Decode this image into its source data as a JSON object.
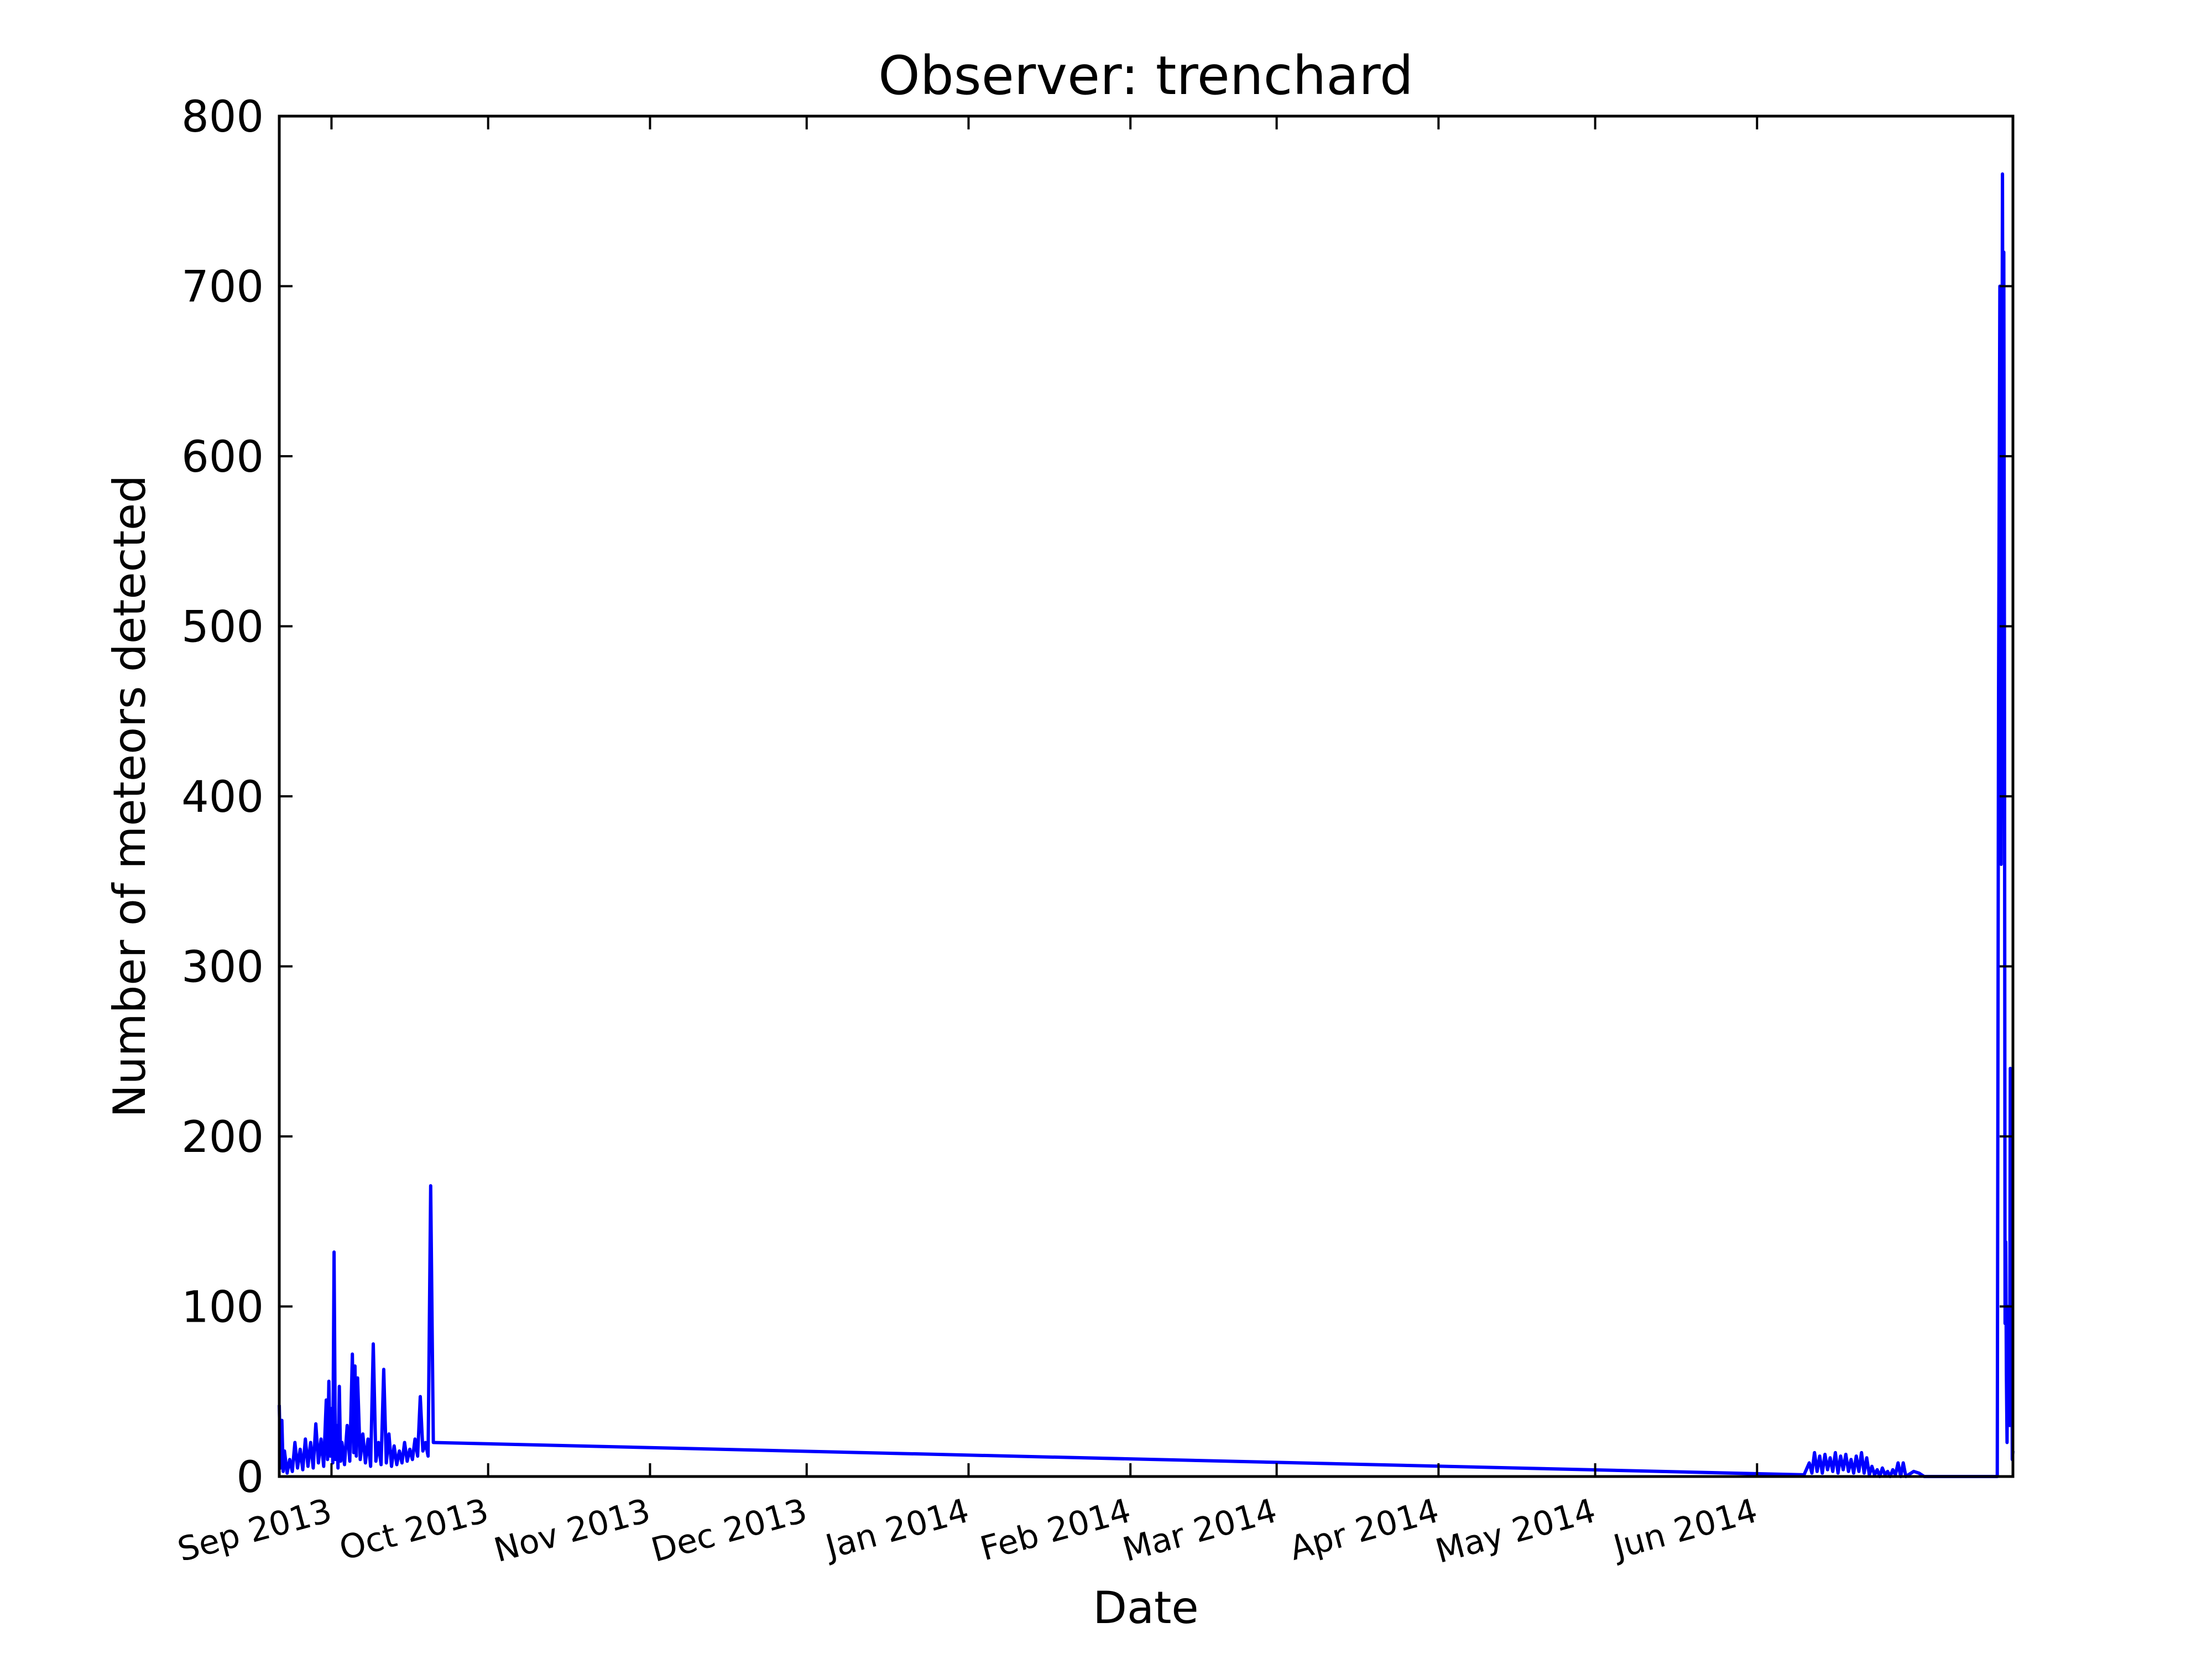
{
  "chart_data": {
    "type": "line",
    "title": "Observer: trenchard",
    "xlabel": "Date",
    "ylabel": "Number of meteors detected",
    "xlim": [
      "2013-08-22",
      "2014-07-20"
    ],
    "ylim": [
      0,
      800
    ],
    "yticks": [
      0,
      100,
      200,
      300,
      400,
      500,
      600,
      700,
      800
    ],
    "xticks": [
      {
        "date": "2013-09-01",
        "label": "Sep 2013"
      },
      {
        "date": "2013-10-01",
        "label": "Oct 2013"
      },
      {
        "date": "2013-11-01",
        "label": "Nov 2013"
      },
      {
        "date": "2013-12-01",
        "label": "Dec 2013"
      },
      {
        "date": "2014-01-01",
        "label": "Jan 2014"
      },
      {
        "date": "2014-02-01",
        "label": "Feb 2014"
      },
      {
        "date": "2014-03-01",
        "label": "Mar 2014"
      },
      {
        "date": "2014-04-01",
        "label": "Apr 2014"
      },
      {
        "date": "2014-05-01",
        "label": "May 2014"
      },
      {
        "date": "2014-06-01",
        "label": "Jun 2014"
      }
    ],
    "grid": false,
    "legend": false,
    "colors": {
      "series": "#0000ff",
      "axes": "#000000",
      "background": "#ffffff"
    },
    "series": [
      {
        "points": [
          [
            "2013-08-22T00:00",
            42
          ],
          [
            "2013-08-22T06:00",
            5
          ],
          [
            "2013-08-22T12:00",
            33
          ],
          [
            "2013-08-22T18:00",
            3
          ],
          [
            "2013-08-23T00:00",
            15
          ],
          [
            "2013-08-23T12:00",
            2
          ],
          [
            "2013-08-24T00:00",
            10
          ],
          [
            "2013-08-24T12:00",
            3
          ],
          [
            "2013-08-25T00:00",
            20
          ],
          [
            "2013-08-25T12:00",
            5
          ],
          [
            "2013-08-26T00:00",
            16
          ],
          [
            "2013-08-26T12:00",
            4
          ],
          [
            "2013-08-27T00:00",
            22
          ],
          [
            "2013-08-27T12:00",
            6
          ],
          [
            "2013-08-28T00:00",
            20
          ],
          [
            "2013-08-28T12:00",
            5
          ],
          [
            "2013-08-29T00:00",
            31
          ],
          [
            "2013-08-29T12:00",
            8
          ],
          [
            "2013-08-30T00:00",
            22
          ],
          [
            "2013-08-30T12:00",
            6
          ],
          [
            "2013-08-31T00:00",
            45
          ],
          [
            "2013-08-31T06:00",
            10
          ],
          [
            "2013-08-31T12:00",
            56
          ],
          [
            "2013-08-31T18:00",
            12
          ],
          [
            "2013-09-01T00:00",
            40
          ],
          [
            "2013-09-01T06:00",
            8
          ],
          [
            "2013-09-01T12:00",
            132
          ],
          [
            "2013-09-01T18:00",
            10
          ],
          [
            "2013-09-02T00:00",
            30
          ],
          [
            "2013-09-02T06:00",
            5
          ],
          [
            "2013-09-02T12:00",
            53
          ],
          [
            "2013-09-02T18:00",
            9
          ],
          [
            "2013-09-03T00:00",
            20
          ],
          [
            "2013-09-03T12:00",
            7
          ],
          [
            "2013-09-04T00:00",
            30
          ],
          [
            "2013-09-04T12:00",
            9
          ],
          [
            "2013-09-05T00:00",
            72
          ],
          [
            "2013-09-05T06:00",
            14
          ],
          [
            "2013-09-05T12:00",
            65
          ],
          [
            "2013-09-05T18:00",
            12
          ],
          [
            "2013-09-06T00:00",
            58
          ],
          [
            "2013-09-06T12:00",
            10
          ],
          [
            "2013-09-07T00:00",
            25
          ],
          [
            "2013-09-07T12:00",
            8
          ],
          [
            "2013-09-08T00:00",
            22
          ],
          [
            "2013-09-08T12:00",
            6
          ],
          [
            "2013-09-09T00:00",
            78
          ],
          [
            "2013-09-09T12:00",
            9
          ],
          [
            "2013-09-10T00:00",
            20
          ],
          [
            "2013-09-10T12:00",
            7
          ],
          [
            "2013-09-11T00:00",
            63
          ],
          [
            "2013-09-11T12:00",
            8
          ],
          [
            "2013-09-12T00:00",
            25
          ],
          [
            "2013-09-12T12:00",
            6
          ],
          [
            "2013-09-13T00:00",
            18
          ],
          [
            "2013-09-13T12:00",
            7
          ],
          [
            "2013-09-14T00:00",
            15
          ],
          [
            "2013-09-14T12:00",
            8
          ],
          [
            "2013-09-15T00:00",
            20
          ],
          [
            "2013-09-15T12:00",
            9
          ],
          [
            "2013-09-16T00:00",
            16
          ],
          [
            "2013-09-16T12:00",
            10
          ],
          [
            "2013-09-17T00:00",
            22
          ],
          [
            "2013-09-17T12:00",
            12
          ],
          [
            "2013-09-18T00:00",
            47
          ],
          [
            "2013-09-18T12:00",
            15
          ],
          [
            "2013-09-19T00:00",
            20
          ],
          [
            "2013-09-19T12:00",
            12
          ],
          [
            "2013-09-20T00:00",
            171
          ],
          [
            "2013-09-20T12:00",
            20
          ],
          [
            "2014-06-10T00:00",
            1
          ],
          [
            "2014-06-11T00:00",
            8
          ],
          [
            "2014-06-11T12:00",
            2
          ],
          [
            "2014-06-12T00:00",
            14
          ],
          [
            "2014-06-12T12:00",
            3
          ],
          [
            "2014-06-13T00:00",
            12
          ],
          [
            "2014-06-13T12:00",
            2
          ],
          [
            "2014-06-14T00:00",
            13
          ],
          [
            "2014-06-14T12:00",
            4
          ],
          [
            "2014-06-15T00:00",
            11
          ],
          [
            "2014-06-15T12:00",
            3
          ],
          [
            "2014-06-16T00:00",
            14
          ],
          [
            "2014-06-16T12:00",
            2
          ],
          [
            "2014-06-17T00:00",
            12
          ],
          [
            "2014-06-17T12:00",
            4
          ],
          [
            "2014-06-18T00:00",
            13
          ],
          [
            "2014-06-18T12:00",
            3
          ],
          [
            "2014-06-19T00:00",
            10
          ],
          [
            "2014-06-19T12:00",
            2
          ],
          [
            "2014-06-20T00:00",
            12
          ],
          [
            "2014-06-20T12:00",
            3
          ],
          [
            "2014-06-21T00:00",
            14
          ],
          [
            "2014-06-21T12:00",
            2
          ],
          [
            "2014-06-22T00:00",
            11
          ],
          [
            "2014-06-22T12:00",
            1
          ],
          [
            "2014-06-23T00:00",
            6
          ],
          [
            "2014-06-23T12:00",
            1
          ],
          [
            "2014-06-24T00:00",
            4
          ],
          [
            "2014-06-24T12:00",
            0
          ],
          [
            "2014-06-25T00:00",
            5
          ],
          [
            "2014-06-25T12:00",
            1
          ],
          [
            "2014-06-26T00:00",
            3
          ],
          [
            "2014-06-26T12:00",
            0
          ],
          [
            "2014-06-27T00:00",
            4
          ],
          [
            "2014-06-27T12:00",
            1
          ],
          [
            "2014-06-28T00:00",
            8
          ],
          [
            "2014-06-28T12:00",
            0
          ],
          [
            "2014-06-29T00:00",
            8
          ],
          [
            "2014-06-29T12:00",
            0
          ],
          [
            "2014-06-30T00:00",
            1
          ],
          [
            "2014-07-01T00:00",
            3
          ],
          [
            "2014-07-02T00:00",
            2
          ],
          [
            "2014-07-03T00:00",
            0
          ],
          [
            "2014-07-17T00:00",
            0
          ],
          [
            "2014-07-17T06:00",
            460
          ],
          [
            "2014-07-17T12:00",
            700
          ],
          [
            "2014-07-17T18:00",
            360
          ],
          [
            "2014-07-18T00:00",
            766
          ],
          [
            "2014-07-18T03:00",
            570
          ],
          [
            "2014-07-18T06:00",
            720
          ],
          [
            "2014-07-18T09:00",
            480
          ],
          [
            "2014-07-18T12:00",
            90
          ],
          [
            "2014-07-18T15:00",
            138
          ],
          [
            "2014-07-18T18:00",
            60
          ],
          [
            "2014-07-18T21:00",
            20
          ],
          [
            "2014-07-19T00:00",
            100
          ],
          [
            "2014-07-19T03:00",
            40
          ],
          [
            "2014-07-19T06:00",
            98
          ],
          [
            "2014-07-19T09:00",
            30
          ],
          [
            "2014-07-19T12:00",
            240
          ],
          [
            "2014-07-19T15:00",
            180
          ],
          [
            "2014-07-19T18:00",
            203
          ],
          [
            "2014-07-19T21:00",
            10
          ],
          [
            "2014-07-20T00:00",
            15
          ]
        ]
      }
    ]
  }
}
